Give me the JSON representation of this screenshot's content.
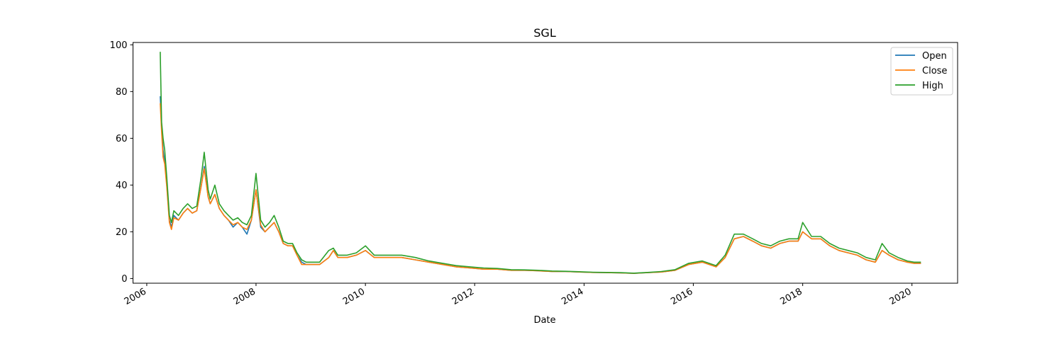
{
  "chart_data": {
    "type": "line",
    "title": "SGL",
    "xlabel": "Date",
    "ylabel": "",
    "x_ticks": [
      "2006",
      "2008",
      "2010",
      "2012",
      "2014",
      "2016",
      "2018",
      "2020"
    ],
    "y_ticks": [
      "0",
      "20",
      "40",
      "60",
      "80",
      "100"
    ],
    "xlim": [
      "2005-10-01",
      "2020-11-01"
    ],
    "ylim": [
      -2,
      101
    ],
    "legend_position": "top-right",
    "grid": false,
    "x": [
      "2006-04-01",
      "2006-04-10",
      "2006-04-20",
      "2006-05-01",
      "2006-05-15",
      "2006-06-01",
      "2006-06-15",
      "2006-07-01",
      "2006-08-01",
      "2006-09-01",
      "2006-10-01",
      "2006-11-01",
      "2006-12-01",
      "2007-01-01",
      "2007-01-20",
      "2007-02-15",
      "2007-03-01",
      "2007-04-01",
      "2007-05-01",
      "2007-06-01",
      "2007-07-01",
      "2007-08-01",
      "2007-09-01",
      "2007-10-01",
      "2007-11-01",
      "2007-12-01",
      "2008-01-01",
      "2008-02-01",
      "2008-03-01",
      "2008-04-01",
      "2008-05-01",
      "2008-06-01",
      "2008-07-01",
      "2008-08-01",
      "2008-09-01",
      "2008-10-01",
      "2008-11-01",
      "2008-12-01",
      "2009-01-01",
      "2009-03-01",
      "2009-05-01",
      "2009-06-01",
      "2009-07-01",
      "2009-09-01",
      "2009-11-01",
      "2010-01-01",
      "2010-03-01",
      "2010-06-01",
      "2010-09-01",
      "2010-12-01",
      "2011-03-01",
      "2011-06-01",
      "2011-09-01",
      "2011-12-01",
      "2012-03-01",
      "2012-06-01",
      "2012-09-01",
      "2012-12-01",
      "2013-03-01",
      "2013-06-01",
      "2013-09-01",
      "2013-12-01",
      "2014-03-01",
      "2014-06-01",
      "2014-09-01",
      "2014-12-01",
      "2015-03-01",
      "2015-06-01",
      "2015-09-01",
      "2015-12-01",
      "2016-03-01",
      "2016-06-01",
      "2016-08-01",
      "2016-10-01",
      "2016-12-01",
      "2017-02-01",
      "2017-04-01",
      "2017-06-01",
      "2017-08-01",
      "2017-10-01",
      "2017-12-01",
      "2018-01-01",
      "2018-03-01",
      "2018-05-01",
      "2018-07-01",
      "2018-09-01",
      "2018-11-01",
      "2019-01-01",
      "2019-03-01",
      "2019-05-01",
      "2019-06-15",
      "2019-08-01",
      "2019-10-01",
      "2019-12-01",
      "2020-01-15",
      "2020-03-01"
    ],
    "series": [
      {
        "name": "Open",
        "color": "#1f77b4",
        "values": [
          78,
          65,
          55,
          50,
          40,
          25,
          22,
          27,
          25,
          28,
          30,
          28,
          29,
          40,
          48,
          35,
          32,
          36,
          30,
          27,
          25,
          22,
          24,
          22,
          19,
          25,
          38,
          22,
          20,
          22,
          24,
          20,
          15,
          14,
          14,
          10,
          7,
          6,
          6,
          6,
          9,
          12,
          9,
          9,
          10,
          12,
          9,
          9,
          9,
          8,
          7,
          6,
          5,
          4.5,
          4,
          4,
          3.5,
          3.5,
          3.3,
          3,
          3,
          2.8,
          2.6,
          2.5,
          2.4,
          2.2,
          2.5,
          2.8,
          3.5,
          6,
          7,
          5,
          9,
          17,
          18,
          16,
          14,
          13,
          15,
          16,
          16,
          20,
          17,
          17,
          14,
          12,
          11,
          10,
          8,
          7,
          12,
          10,
          8,
          7,
          6.5,
          6.5
        ]
      },
      {
        "name": "Close",
        "color": "#ff7f0e",
        "values": [
          75,
          63,
          52,
          49,
          39,
          24,
          21,
          26,
          25,
          28,
          30,
          28,
          29,
          40,
          47,
          35,
          32,
          36,
          30,
          27,
          25,
          23,
          24,
          22,
          21,
          25,
          38,
          23,
          20,
          22,
          24,
          20,
          15,
          14,
          14,
          10,
          6,
          6,
          6,
          6,
          9,
          12,
          9,
          9,
          10,
          12,
          9,
          9,
          9,
          8,
          7,
          6,
          5,
          4.5,
          4,
          4,
          3.5,
          3.5,
          3.3,
          3,
          3,
          2.8,
          2.6,
          2.5,
          2.4,
          2.2,
          2.5,
          2.8,
          3.5,
          6,
          7,
          5,
          9,
          17,
          18,
          16,
          14,
          13,
          15,
          16,
          16,
          20,
          17,
          17,
          14,
          12,
          11,
          10,
          8,
          7,
          12,
          10,
          8,
          7,
          6.5,
          6.5
        ]
      },
      {
        "name": "High",
        "color": "#2ca02c",
        "values": [
          97,
          67,
          60,
          55,
          43,
          27,
          24,
          29,
          27,
          30,
          32,
          30,
          31,
          44,
          54,
          38,
          34,
          40,
          32,
          29,
          27,
          25,
          26,
          24,
          23,
          27,
          45,
          25,
          22,
          24,
          27,
          22,
          16,
          15,
          15,
          11,
          8,
          7,
          7,
          7,
          12,
          13,
          10,
          10,
          11,
          14,
          10,
          10,
          10,
          9,
          7.5,
          6.5,
          5.5,
          5,
          4.5,
          4.3,
          3.8,
          3.7,
          3.5,
          3.2,
          3.1,
          2.9,
          2.7,
          2.6,
          2.5,
          2.3,
          2.6,
          3,
          3.8,
          6.5,
          7.5,
          5.5,
          10,
          19,
          19,
          17,
          15,
          14,
          16,
          17,
          17,
          24,
          18,
          18,
          15,
          13,
          12,
          11,
          9,
          8,
          15,
          11,
          9,
          7.5,
          7,
          7
        ]
      }
    ]
  }
}
